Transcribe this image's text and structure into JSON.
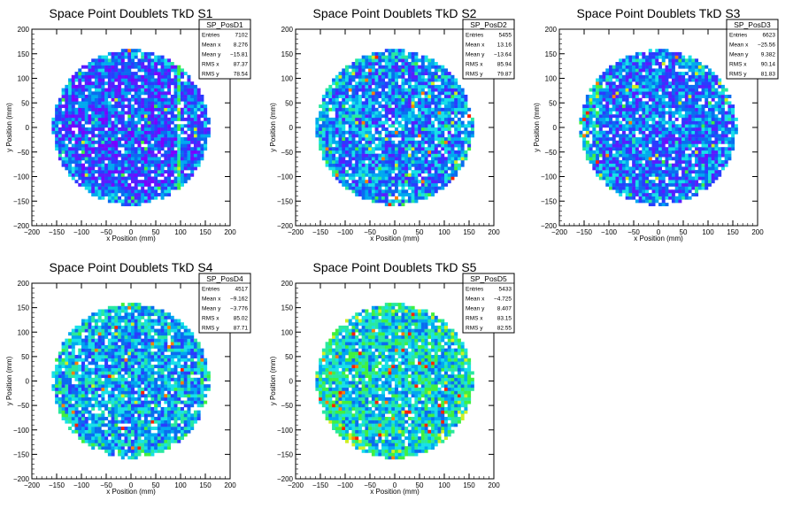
{
  "canvas": {
    "background": "#ffffff"
  },
  "colors": {
    "axis": "#000000",
    "palette": [
      "#7a00ff",
      "#5a1cff",
      "#2a3cff",
      "#0a6cf0",
      "#00a8f0",
      "#18e0e8",
      "#28e8a0",
      "#40f040",
      "#d0f020",
      "#ff8000",
      "#ff2000"
    ]
  },
  "chart_data": [
    {
      "type": "heatmap",
      "title": "Space Point Doublets TkD S1",
      "xlabel": "x Position (mm)",
      "ylabel": "y Position (mm)",
      "xlim": [
        -200,
        200
      ],
      "ylim": [
        -200,
        200
      ],
      "xticks": [
        -200,
        -150,
        -100,
        -50,
        0,
        50,
        100,
        150,
        200
      ],
      "yticks": [
        -200,
        -150,
        -100,
        -50,
        0,
        50,
        100,
        150,
        200
      ],
      "bins": 60,
      "disk_radius": 158,
      "base_level": 0.25,
      "stripe_x": 95,
      "grid": false,
      "stats": {
        "name": "SP_PosD1",
        "rows": [
          [
            "Entries",
            "7102"
          ],
          [
            "Mean x",
            "8.276"
          ],
          [
            "Mean y",
            "−15.81"
          ],
          [
            "RMS x",
            "87.37"
          ],
          [
            "RMS y",
            "78.54"
          ]
        ]
      }
    },
    {
      "type": "heatmap",
      "title": "Space Point Doublets TkD S2",
      "xlabel": "x Position (mm)",
      "ylabel": "y Position (mm)",
      "xlim": [
        -200,
        200
      ],
      "ylim": [
        -200,
        200
      ],
      "xticks": [
        -200,
        -150,
        -100,
        -50,
        0,
        50,
        100,
        150,
        200
      ],
      "yticks": [
        -200,
        -150,
        -100,
        -50,
        0,
        50,
        100,
        150,
        200
      ],
      "bins": 60,
      "disk_radius": 158,
      "base_level": 0.35,
      "grid": false,
      "stats": {
        "name": "SP_PosD2",
        "rows": [
          [
            "Entries",
            "5455"
          ],
          [
            "Mean x",
            "13.16"
          ],
          [
            "Mean y",
            "−13.64"
          ],
          [
            "RMS x",
            "85.94"
          ],
          [
            "RMS y",
            "79.87"
          ]
        ]
      }
    },
    {
      "type": "heatmap",
      "title": "Space Point Doublets TkD S3",
      "xlabel": "x Position (mm)",
      "ylabel": "y Position (mm)",
      "xlim": [
        -200,
        200
      ],
      "ylim": [
        -200,
        200
      ],
      "xticks": [
        -200,
        -150,
        -100,
        -50,
        0,
        50,
        100,
        150,
        200
      ],
      "yticks": [
        -200,
        -150,
        -100,
        -50,
        0,
        50,
        100,
        150,
        200
      ],
      "bins": 60,
      "disk_radius": 158,
      "base_level": 0.3,
      "left_edge_hot": true,
      "grid": false,
      "stats": {
        "name": "SP_PosD3",
        "rows": [
          [
            "Entries",
            "6623"
          ],
          [
            "Mean x",
            "−25.56"
          ],
          [
            "Mean y",
            "9.382"
          ],
          [
            "RMS x",
            "90.14"
          ],
          [
            "RMS y",
            "81.83"
          ]
        ]
      }
    },
    {
      "type": "heatmap",
      "title": "Space Point Doublets TkD S4",
      "xlabel": "x Position (mm)",
      "ylabel": "y Position (mm)",
      "xlim": [
        -200,
        200
      ],
      "ylim": [
        -200,
        200
      ],
      "xticks": [
        -200,
        -150,
        -100,
        -50,
        0,
        50,
        100,
        150,
        200
      ],
      "yticks": [
        -200,
        -150,
        -100,
        -50,
        0,
        50,
        100,
        150,
        200
      ],
      "bins": 60,
      "disk_radius": 158,
      "base_level": 0.4,
      "grid": false,
      "stats": {
        "name": "SP_PosD4",
        "rows": [
          [
            "Entries",
            "4517"
          ],
          [
            "Mean x",
            "−9.162"
          ],
          [
            "Mean y",
            "−3.776"
          ],
          [
            "RMS x",
            "85.02"
          ],
          [
            "RMS y",
            "87.71"
          ]
        ]
      }
    },
    {
      "type": "heatmap",
      "title": "Space Point Doublets TkD S5",
      "xlabel": "x Position (mm)",
      "ylabel": "y Position (mm)",
      "xlim": [
        -200,
        200
      ],
      "ylim": [
        -200,
        200
      ],
      "xticks": [
        -200,
        -150,
        -100,
        -50,
        0,
        50,
        100,
        150,
        200
      ],
      "yticks": [
        -200,
        -150,
        -100,
        -50,
        0,
        50,
        100,
        150,
        200
      ],
      "bins": 60,
      "disk_radius": 158,
      "base_level": 0.5,
      "grid": false,
      "stats": {
        "name": "SP_PosD5",
        "rows": [
          [
            "Entries",
            "5433"
          ],
          [
            "Mean x",
            "−4.725"
          ],
          [
            "Mean y",
            "8.407"
          ],
          [
            "RMS x",
            "83.15"
          ],
          [
            "RMS y",
            "82.55"
          ]
        ]
      }
    }
  ]
}
